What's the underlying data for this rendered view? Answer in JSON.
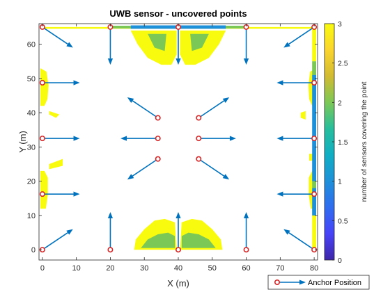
{
  "chart_data": {
    "type": "scatter",
    "title": "UWB sensor - uncovered points",
    "xlabel": "X (m)",
    "ylabel": "Y (m)",
    "xlim": [
      -1,
      81
    ],
    "ylim": [
      -3,
      66
    ],
    "xticks": [
      0,
      10,
      20,
      30,
      40,
      50,
      60,
      70,
      80
    ],
    "yticks": [
      0,
      10,
      20,
      30,
      40,
      50,
      60
    ],
    "legend": {
      "label": "Anchor Position",
      "placement": "bottom-right"
    },
    "colorbar": {
      "label": "number of sensors covering the point",
      "range": [
        0,
        3
      ],
      "ticks": [
        0,
        0.5,
        1,
        1.5,
        2,
        2.5,
        3
      ],
      "colormap": [
        "#3e26a8",
        "#4743f8",
        "#2f6cf0",
        "#1e90d9",
        "#10aec4",
        "#27be9c",
        "#7cc856",
        "#d2bb32",
        "#fbd52e",
        "#f9fb0e"
      ]
    },
    "anchors": [
      {
        "x": 0,
        "y": 0,
        "dx": 9,
        "dy": 6
      },
      {
        "x": 20,
        "y": 0,
        "dx": 0,
        "dy": 11
      },
      {
        "x": 40,
        "y": 0,
        "dx": 0,
        "dy": 11
      },
      {
        "x": 60,
        "y": 0,
        "dx": 0,
        "dy": 11
      },
      {
        "x": 80,
        "y": 0,
        "dx": -9,
        "dy": 6
      },
      {
        "x": 0,
        "y": 16.25,
        "dx": 11,
        "dy": 0
      },
      {
        "x": 0,
        "y": 32.5,
        "dx": 11,
        "dy": 0
      },
      {
        "x": 0,
        "y": 48.75,
        "dx": 11,
        "dy": 0
      },
      {
        "x": 80,
        "y": 16.25,
        "dx": -11,
        "dy": 0
      },
      {
        "x": 80,
        "y": 32.5,
        "dx": -11,
        "dy": 0
      },
      {
        "x": 80,
        "y": 48.75,
        "dx": -11,
        "dy": 0
      },
      {
        "x": 0,
        "y": 65,
        "dx": 9,
        "dy": -6
      },
      {
        "x": 20,
        "y": 65,
        "dx": 0,
        "dy": -11
      },
      {
        "x": 40,
        "y": 65,
        "dx": 0,
        "dy": -11
      },
      {
        "x": 60,
        "y": 65,
        "dx": 0,
        "dy": -11
      },
      {
        "x": 80,
        "y": 65,
        "dx": -9,
        "dy": -6
      },
      {
        "x": 34,
        "y": 38.5,
        "dx": -9,
        "dy": 6
      },
      {
        "x": 46,
        "y": 38.5,
        "dx": 9,
        "dy": 6
      },
      {
        "x": 34,
        "y": 32.5,
        "dx": -11,
        "dy": 0
      },
      {
        "x": 46,
        "y": 32.5,
        "dx": 11,
        "dy": 0
      },
      {
        "x": 34,
        "y": 26.5,
        "dx": -9,
        "dy": -6
      },
      {
        "x": 46,
        "y": 26.5,
        "dx": 9,
        "dy": -6
      }
    ],
    "uncovered_regions": [
      {
        "coverage": 3,
        "points": [
          [
            0,
            65
          ],
          [
            80,
            65
          ],
          [
            80,
            64.5
          ],
          [
            0,
            64.5
          ]
        ]
      },
      {
        "coverage": 2,
        "points": [
          [
            20,
            65.4
          ],
          [
            26,
            65.4
          ],
          [
            26,
            64.6
          ],
          [
            20,
            64.6
          ]
        ]
      },
      {
        "coverage": 1,
        "points": [
          [
            26,
            65.5
          ],
          [
            54,
            65.5
          ],
          [
            54,
            64.5
          ],
          [
            26,
            64.5
          ]
        ]
      },
      {
        "coverage": 2,
        "points": [
          [
            54,
            65.4
          ],
          [
            60,
            65.4
          ],
          [
            60,
            64.6
          ],
          [
            54,
            64.6
          ]
        ]
      },
      {
        "coverage": 3,
        "points": [
          [
            26,
            64
          ],
          [
            28,
            60
          ],
          [
            31,
            56
          ],
          [
            35,
            54
          ],
          [
            38,
            54
          ],
          [
            39.5,
            57
          ],
          [
            39.5,
            64
          ]
        ]
      },
      {
        "coverage": 3,
        "points": [
          [
            40.5,
            64
          ],
          [
            40.5,
            57
          ],
          [
            42,
            54
          ],
          [
            45,
            54
          ],
          [
            49,
            56
          ],
          [
            52,
            60
          ],
          [
            54,
            64
          ]
        ]
      },
      {
        "coverage": 2,
        "points": [
          [
            31,
            63
          ],
          [
            33,
            59
          ],
          [
            36,
            58
          ],
          [
            36.5,
            63
          ]
        ]
      },
      {
        "coverage": 2,
        "points": [
          [
            43.5,
            63
          ],
          [
            44,
            58
          ],
          [
            47,
            59
          ],
          [
            49,
            63
          ]
        ]
      },
      {
        "coverage": 3,
        "points": [
          [
            27,
            0
          ],
          [
            27.5,
            3
          ],
          [
            30,
            6
          ],
          [
            33,
            8.5
          ],
          [
            36,
            9
          ],
          [
            39,
            8
          ],
          [
            39.5,
            0
          ]
        ]
      },
      {
        "coverage": 3,
        "points": [
          [
            40.5,
            0
          ],
          [
            41,
            8
          ],
          [
            44,
            9
          ],
          [
            47,
            8.5
          ],
          [
            50,
            6
          ],
          [
            52.5,
            3
          ],
          [
            53,
            0
          ]
        ]
      },
      {
        "coverage": 2,
        "points": [
          [
            29,
            0.5
          ],
          [
            31,
            3
          ],
          [
            34,
            4.5
          ],
          [
            37,
            5
          ],
          [
            39,
            4
          ],
          [
            39,
            0.5
          ]
        ]
      },
      {
        "coverage": 2,
        "points": [
          [
            41,
            0.5
          ],
          [
            41,
            4
          ],
          [
            43,
            5
          ],
          [
            46,
            4.5
          ],
          [
            49,
            3
          ],
          [
            51,
            0.5
          ]
        ]
      },
      {
        "coverage": 3,
        "points": [
          [
            -0.6,
            53
          ],
          [
            1.2,
            52
          ],
          [
            1.8,
            48
          ],
          [
            1.5,
            44
          ],
          [
            0.6,
            42
          ],
          [
            -0.6,
            42
          ]
        ]
      },
      {
        "coverage": 3,
        "points": [
          [
            -0.6,
            23
          ],
          [
            0.6,
            23
          ],
          [
            1.6,
            21
          ],
          [
            1.6,
            16
          ],
          [
            1,
            12
          ],
          [
            -0.6,
            12
          ]
        ]
      },
      {
        "coverage": 3,
        "points": [
          [
            2,
            25
          ],
          [
            6,
            26.5
          ],
          [
            6,
            24.5
          ],
          [
            2,
            23.5
          ]
        ]
      },
      {
        "coverage": 3,
        "points": [
          [
            2,
            40.5
          ],
          [
            5,
            39.5
          ],
          [
            4,
            38.5
          ],
          [
            2,
            39.5
          ]
        ]
      },
      {
        "coverage": 3,
        "points": [
          [
            80.6,
            53
          ],
          [
            78.8,
            52
          ],
          [
            78.3,
            48
          ],
          [
            78.5,
            44
          ],
          [
            79.4,
            42
          ],
          [
            80.6,
            42
          ]
        ]
      },
      {
        "coverage": 3,
        "points": [
          [
            80.6,
            23
          ],
          [
            79.4,
            23
          ],
          [
            78.4,
            21
          ],
          [
            78.4,
            16
          ],
          [
            79,
            12
          ],
          [
            80.6,
            12
          ]
        ]
      },
      {
        "coverage": 3,
        "points": [
          [
            76,
            40
          ],
          [
            77.5,
            40.5
          ],
          [
            77.5,
            38
          ],
          [
            76,
            38.5
          ]
        ]
      },
      {
        "coverage": 3,
        "points": [
          [
            78.5,
            28
          ],
          [
            79.6,
            28
          ],
          [
            79.6,
            26
          ],
          [
            78.5,
            26
          ]
        ]
      },
      {
        "coverage": 3,
        "points": [
          [
            79.4,
            12
          ],
          [
            80.6,
            12
          ],
          [
            80.6,
            0
          ],
          [
            79.4,
            0
          ]
        ]
      },
      {
        "coverage": 3,
        "points": [
          [
            79.4,
            65
          ],
          [
            80.6,
            65
          ],
          [
            80.6,
            55
          ],
          [
            79.4,
            55
          ]
        ]
      },
      {
        "coverage": 2,
        "points": [
          [
            79.4,
            55
          ],
          [
            80.6,
            55
          ],
          [
            80.6,
            51
          ],
          [
            79.4,
            51
          ]
        ]
      },
      {
        "coverage": 1,
        "points": [
          [
            79.4,
            51
          ],
          [
            80.6,
            51
          ],
          [
            80.6,
            20
          ],
          [
            79.4,
            20
          ]
        ]
      },
      {
        "coverage": 2,
        "points": [
          [
            79.4,
            20
          ],
          [
            80.6,
            20
          ],
          [
            80.6,
            18
          ],
          [
            79.4,
            18
          ]
        ]
      },
      {
        "coverage": 1,
        "points": [
          [
            79.4,
            18
          ],
          [
            80.6,
            18
          ],
          [
            80.6,
            10
          ],
          [
            79.4,
            10
          ]
        ]
      }
    ]
  }
}
